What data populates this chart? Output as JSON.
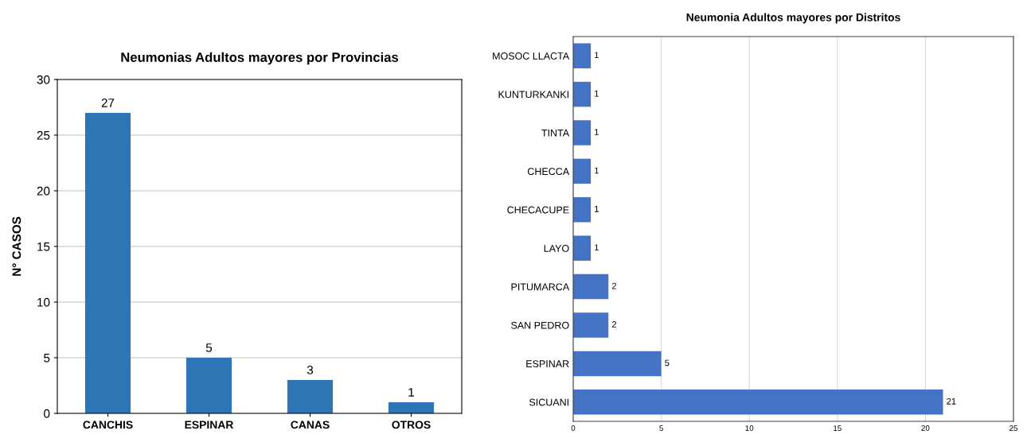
{
  "chart_data": [
    {
      "type": "bar",
      "title": "Neumonias Adultos mayores por Provincias",
      "ylabel": "N° CASOS",
      "categories": [
        "CANCHIS",
        "ESPINAR",
        "CANAS",
        "OTROS"
      ],
      "values": [
        27,
        5,
        3,
        1
      ],
      "color": "#2e75b6",
      "ylim": [
        0,
        30
      ],
      "yticks": [
        0,
        5,
        10,
        15,
        20,
        25,
        30
      ],
      "grid": "y",
      "data_labels": true,
      "legend": false
    },
    {
      "type": "bar",
      "orientation": "horizontal",
      "title": "Neumonia Adultos mayores por Distritos",
      "categories": [
        "MOSOC LLACTA",
        "KUNTURKANKI",
        "TINTA",
        "CHECCA",
        "CHECACUPE",
        "LAYO",
        "PITUMARCA",
        "SAN PEDRO",
        "ESPINAR",
        "SICUANI"
      ],
      "values": [
        1,
        1,
        1,
        1,
        1,
        1,
        2,
        2,
        5,
        21
      ],
      "color": "#4472c4",
      "xlim": [
        0,
        25
      ],
      "xticks": [
        0,
        5,
        10,
        15,
        20,
        25
      ],
      "grid": "x",
      "data_labels": true,
      "legend": false
    }
  ]
}
